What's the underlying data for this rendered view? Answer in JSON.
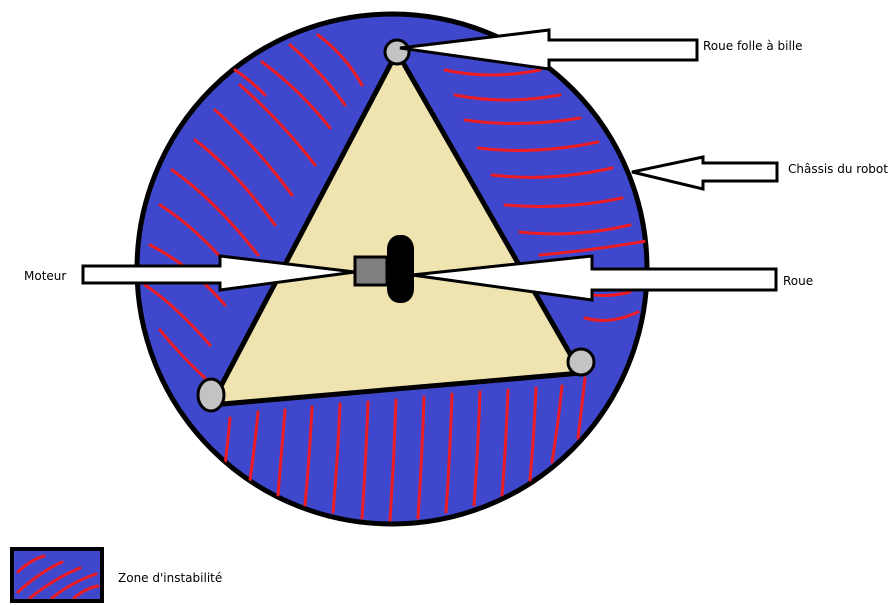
{
  "labels": {
    "ball_caster": "Roue folle à bille",
    "chassis": "Châssis du robot",
    "motor": "Moteur",
    "wheel": "Roue",
    "instability_zone": "Zone d'instabilité"
  },
  "colors": {
    "zone_fill": "#3f48cc",
    "hatch": "#ed1c24",
    "outline": "#000000",
    "triangle_fill": "#efe4b0",
    "caster_fill": "#c3c3c3",
    "motor_fill": "#7f7f7f",
    "wheel_fill": "#000000",
    "background": "#ffffff"
  }
}
